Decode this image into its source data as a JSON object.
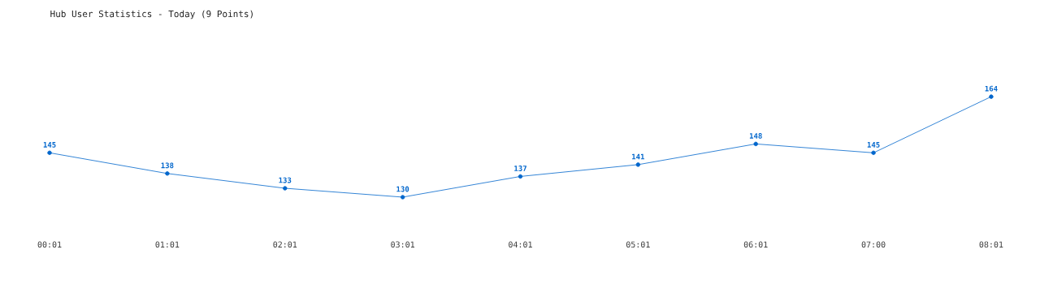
{
  "chart_data": {
    "type": "line",
    "title": "Hub User Statistics - Today (9 Points)",
    "categories": [
      "00:01",
      "01:01",
      "02:01",
      "03:01",
      "04:01",
      "05:01",
      "06:01",
      "07:00",
      "08:01"
    ],
    "series": [
      {
        "color": "#0066cc",
        "values": [
          145,
          138,
          133,
          130,
          137,
          141,
          148,
          145,
          164
        ]
      }
    ],
    "data_labels": true,
    "marker": "circle",
    "line_style": "solid"
  }
}
